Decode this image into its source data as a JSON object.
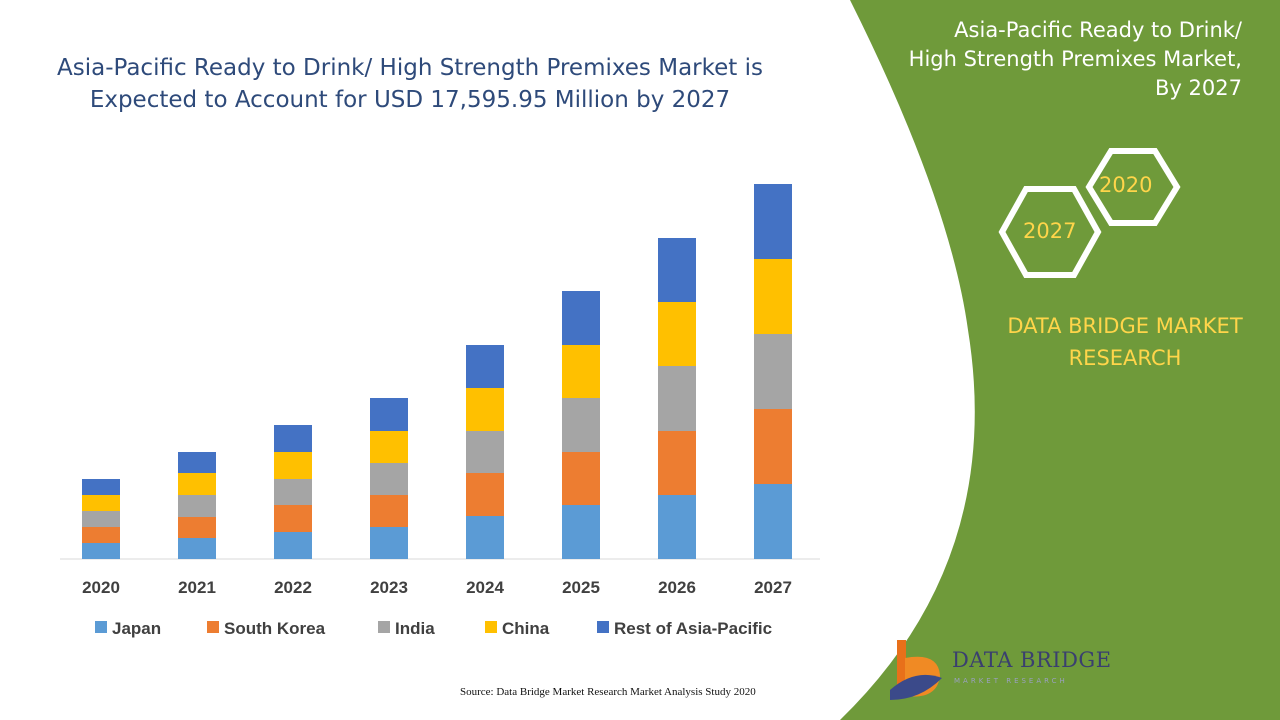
{
  "title_line1": "Asia-Pacific Ready to Drink/ High Strength Premixes Market is",
  "title_line2": "Expected to Account for USD 17,595.95 Million by 2027",
  "panel": {
    "title_line1": "Asia-Pacific Ready to Drink/",
    "title_line2": "High Strength Premixes Market,",
    "title_line3": "By 2027",
    "hex_year_a": "2020",
    "hex_year_b": "2027",
    "brand_line1": "DATA BRIDGE MARKET",
    "brand_line2": "RESEARCH"
  },
  "source": "Source: Data Bridge Market Research Market Analysis Study 2020",
  "logo": {
    "name": "DATA BRIDGE",
    "tagline": "MARKET RESEARCH"
  },
  "colors": {
    "panel_green": "#6f9a3a",
    "accent_yellow": "#ffd54a",
    "title_blue": "#2e4a7a"
  },
  "chart_data": {
    "type": "bar",
    "stacked": true,
    "categories": [
      "2020",
      "2021",
      "2022",
      "2023",
      "2024",
      "2025",
      "2026",
      "2027"
    ],
    "series": [
      {
        "name": "Japan",
        "color": "#5b9bd5",
        "values": [
          16,
          21,
          27,
          32,
          43,
          54,
          64,
          75
        ]
      },
      {
        "name": "South Korea",
        "color": "#ed7d31",
        "values": [
          16,
          21,
          27,
          32,
          43,
          53,
          64,
          75
        ]
      },
      {
        "name": "India",
        "color": "#a5a5a5",
        "values": [
          16,
          22,
          26,
          32,
          42,
          54,
          65,
          75
        ]
      },
      {
        "name": "China",
        "color": "#ffc000",
        "values": [
          16,
          22,
          27,
          32,
          43,
          53,
          64,
          75
        ]
      },
      {
        "name": "Rest of Asia-Pacific",
        "color": "#4472c4",
        "values": [
          16,
          21,
          27,
          33,
          43,
          54,
          64,
          75
        ]
      }
    ],
    "ylim": [
      0,
      375
    ],
    "grid": false,
    "legend_position": "bottom",
    "xlabel": "",
    "ylabel": ""
  }
}
